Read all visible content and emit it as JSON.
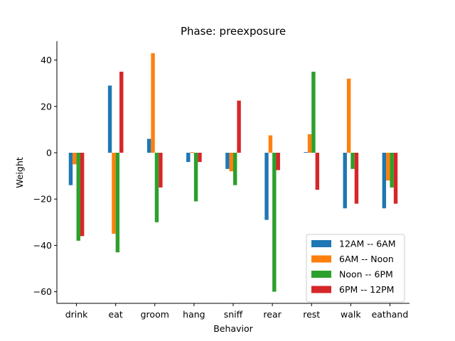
{
  "chart_data": {
    "type": "bar",
    "title": "Phase: preexposure",
    "xlabel": "Behavior",
    "ylabel": "Weight",
    "ylim": [
      -65,
      48
    ],
    "yticks": [
      -60,
      -40,
      -20,
      0,
      20,
      40
    ],
    "ytick_labels": [
      "−60",
      "−40",
      "−20",
      "0",
      "20",
      "40"
    ],
    "categories": [
      "drink",
      "eat",
      "groom",
      "hang",
      "sniff",
      "rear",
      "rest",
      "walk",
      "eathand"
    ],
    "series": [
      {
        "name": "12AM -- 6AM",
        "color": "#1f77b4",
        "values": [
          -14,
          29,
          6,
          -4,
          -7,
          -29,
          0.3,
          -24,
          -24
        ]
      },
      {
        "name": "6AM -- Noon",
        "color": "#ff7f0e",
        "values": [
          -5,
          -35,
          43,
          0.3,
          -8,
          7.5,
          8,
          32,
          -12
        ]
      },
      {
        "name": "Noon -- 6PM",
        "color": "#2ca02c",
        "values": [
          -38,
          -43,
          -30,
          -21,
          -14,
          -60,
          35,
          -7,
          -15
        ]
      },
      {
        "name": "6PM -- 12PM",
        "color": "#d62728",
        "values": [
          -36,
          35,
          -15,
          -4,
          22.5,
          -7.5,
          -16,
          -22,
          -22
        ]
      }
    ],
    "legend_position": "lower-right",
    "grid": false
  }
}
